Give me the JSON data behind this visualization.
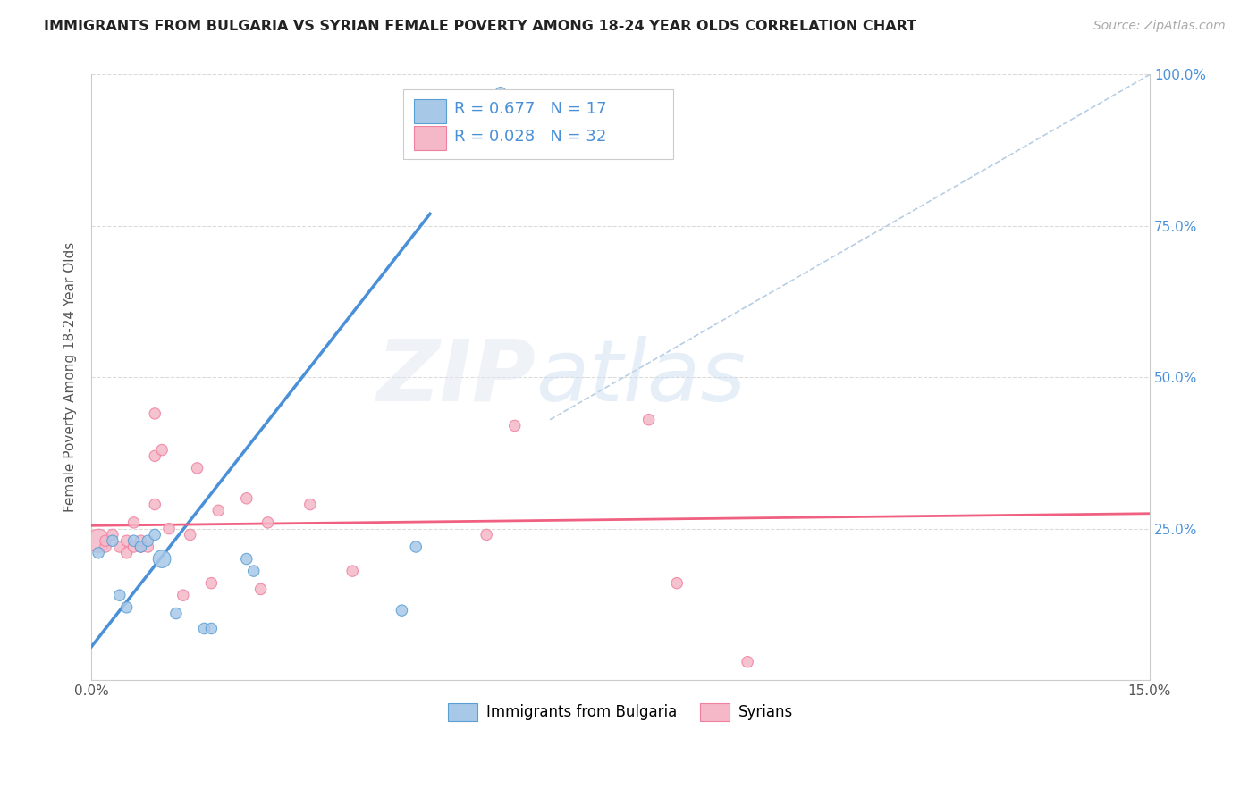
{
  "title": "IMMIGRANTS FROM BULGARIA VS SYRIAN FEMALE POVERTY AMONG 18-24 YEAR OLDS CORRELATION CHART",
  "source": "Source: ZipAtlas.com",
  "ylabel": "Female Poverty Among 18-24 Year Olds",
  "xlabel": "",
  "watermark_zip": "ZIP",
  "watermark_atlas": "atlas",
  "bg_color": "#ffffff",
  "plot_bg_color": "#ffffff",
  "grid_color": "#cccccc",
  "x_min": 0.0,
  "x_max": 0.15,
  "y_min": 0.0,
  "y_max": 1.0,
  "x_ticks": [
    0.0,
    0.03,
    0.06,
    0.09,
    0.12,
    0.15
  ],
  "y_ticks": [
    0.0,
    0.25,
    0.5,
    0.75,
    1.0
  ],
  "y_tick_labels_right": [
    "",
    "25.0%",
    "50.0%",
    "75.0%",
    "100.0%"
  ],
  "bulgaria_R": 0.677,
  "bulgaria_N": 17,
  "syria_R": 0.028,
  "syria_N": 32,
  "bulgaria_color": "#a8c8e8",
  "syria_color": "#f4b8c8",
  "bulgaria_edge_color": "#5a9fd4",
  "syria_edge_color": "#f080a0",
  "bulgaria_line_color": "#4a90d9",
  "syria_line_color": "#f06080",
  "diagonal_color": "#b0c8e0",
  "legend_color": "#4a90d9",
  "bulgaria_x": [
    0.001,
    0.003,
    0.004,
    0.005,
    0.006,
    0.007,
    0.008,
    0.009,
    0.01,
    0.012,
    0.016,
    0.017,
    0.022,
    0.023,
    0.044,
    0.046,
    0.058
  ],
  "bulgaria_y": [
    0.21,
    0.23,
    0.14,
    0.12,
    0.23,
    0.22,
    0.23,
    0.24,
    0.2,
    0.11,
    0.085,
    0.085,
    0.2,
    0.18,
    0.115,
    0.22,
    0.97
  ],
  "bulgaria_sizes": [
    80,
    80,
    80,
    80,
    80,
    80,
    80,
    80,
    200,
    80,
    80,
    80,
    80,
    80,
    80,
    80,
    80
  ],
  "syria_x": [
    0.001,
    0.002,
    0.002,
    0.003,
    0.004,
    0.005,
    0.005,
    0.006,
    0.006,
    0.007,
    0.007,
    0.008,
    0.009,
    0.009,
    0.009,
    0.01,
    0.011,
    0.013,
    0.014,
    0.015,
    0.017,
    0.018,
    0.022,
    0.024,
    0.025,
    0.031,
    0.037,
    0.056,
    0.06,
    0.079,
    0.083,
    0.093
  ],
  "syria_y": [
    0.23,
    0.22,
    0.23,
    0.24,
    0.22,
    0.21,
    0.23,
    0.26,
    0.22,
    0.22,
    0.23,
    0.22,
    0.37,
    0.29,
    0.44,
    0.38,
    0.25,
    0.14,
    0.24,
    0.35,
    0.16,
    0.28,
    0.3,
    0.15,
    0.26,
    0.29,
    0.18,
    0.24,
    0.42,
    0.43,
    0.16,
    0.03
  ],
  "syria_sizes": [
    350,
    80,
    80,
    80,
    80,
    80,
    80,
    80,
    80,
    80,
    80,
    80,
    80,
    80,
    80,
    80,
    80,
    80,
    80,
    80,
    80,
    80,
    80,
    80,
    80,
    80,
    80,
    80,
    80,
    80,
    80,
    80
  ],
  "bulgaria_line_x": [
    0.0,
    0.048
  ],
  "bulgaria_line_y": [
    0.055,
    0.77
  ],
  "syria_line_x": [
    0.0,
    0.15
  ],
  "syria_line_y": [
    0.255,
    0.275
  ],
  "diagonal_line_x": [
    0.065,
    0.15
  ],
  "diagonal_line_y": [
    0.43,
    1.0
  ]
}
